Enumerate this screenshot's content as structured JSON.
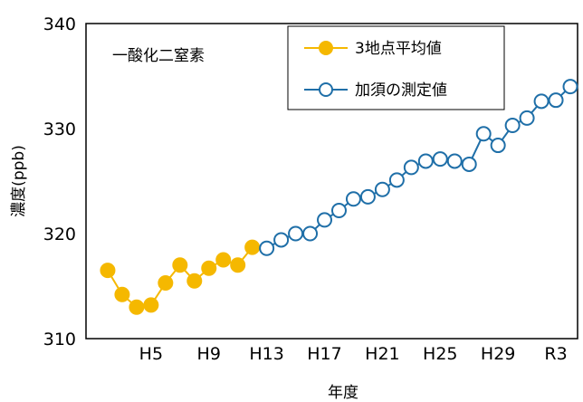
{
  "chart_data": {
    "type": "line",
    "title": "",
    "annotation": "一酸化二窒素",
    "xlabel": "年度",
    "ylabel": "濃度(ppb)",
    "ylim": [
      310,
      340
    ],
    "yticks": [
      310,
      320,
      330,
      340
    ],
    "x_tick_labels": [
      "H5",
      "H9",
      "H13",
      "H17",
      "H21",
      "H25",
      "H29",
      "R3"
    ],
    "x_tick_positions": [
      5,
      9,
      13,
      17,
      21,
      25,
      29,
      33
    ],
    "xlim": [
      0.5,
      34.5
    ],
    "legend_position": "top-right",
    "grid": false,
    "series": [
      {
        "name": "3地点平均値",
        "color": "#F5B800",
        "marker": "filled-circle",
        "x": [
          2,
          3,
          4,
          5,
          6,
          7,
          8,
          9,
          10,
          11,
          12
        ],
        "values": [
          316.5,
          314.2,
          313.0,
          313.2,
          315.3,
          317.0,
          315.5,
          316.7,
          317.5,
          317.0,
          318.7
        ]
      },
      {
        "name": "加須の測定値",
        "color": "#1F6FA8",
        "marker": "open-circle",
        "x": [
          13,
          14,
          15,
          16,
          17,
          18,
          19,
          20,
          21,
          22,
          23,
          24,
          25,
          26,
          27,
          28,
          29,
          30,
          31,
          32,
          33,
          34
        ],
        "values": [
          318.6,
          319.4,
          320.0,
          320.0,
          321.3,
          322.2,
          323.3,
          323.5,
          324.2,
          325.1,
          326.3,
          326.9,
          327.1,
          326.9,
          326.6,
          329.5,
          328.4,
          330.3,
          331.0,
          332.6,
          332.7,
          334.0
        ]
      }
    ]
  }
}
